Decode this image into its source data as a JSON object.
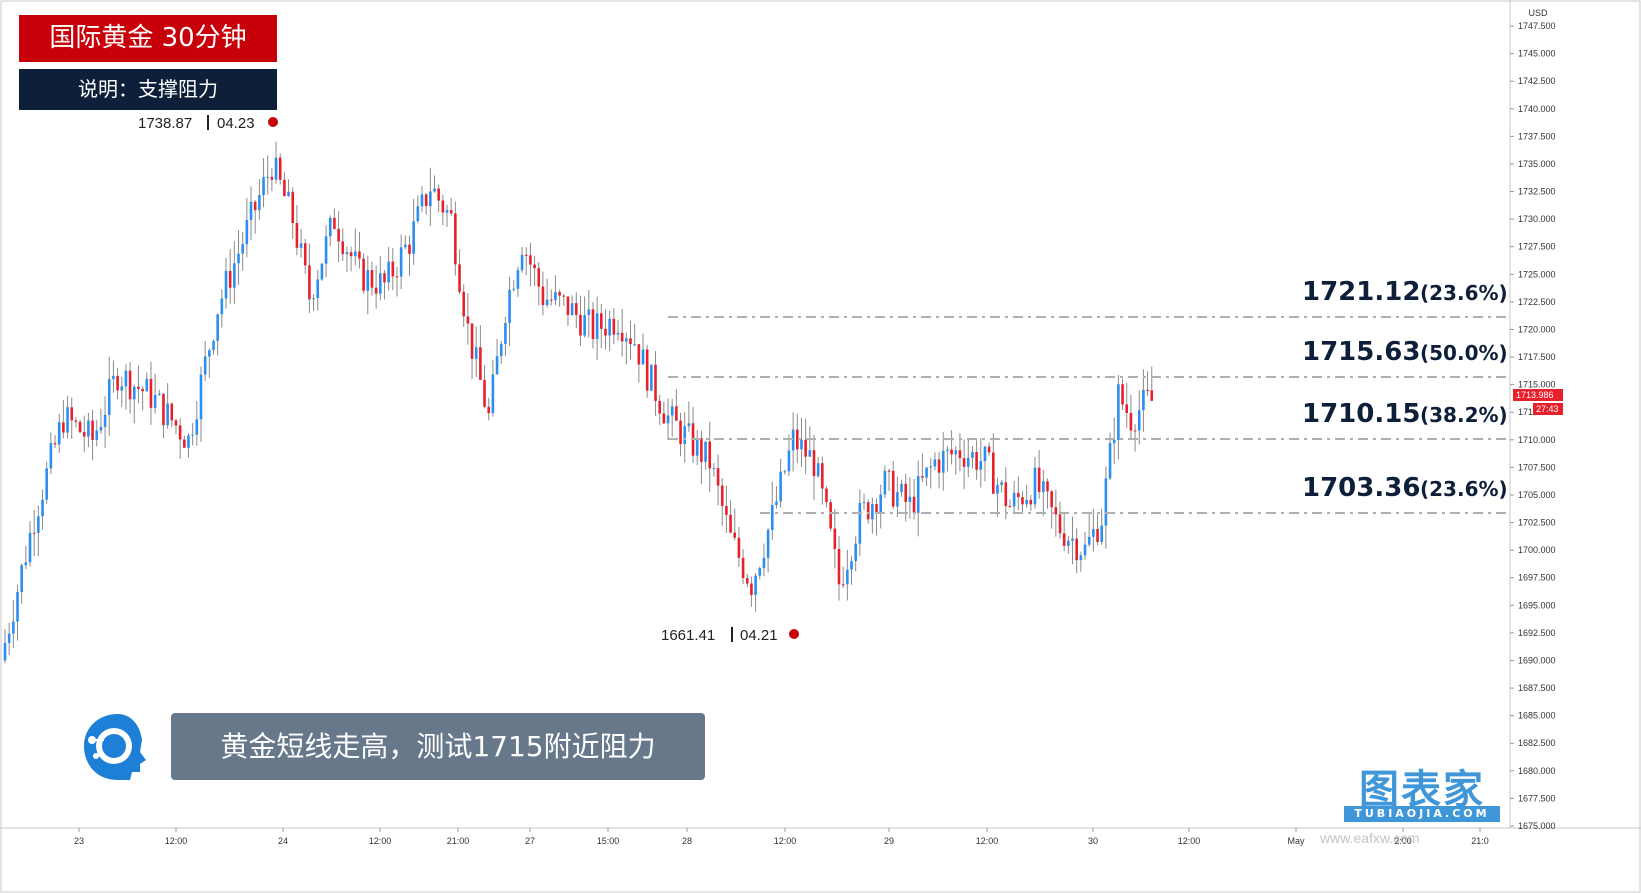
{
  "header": {
    "title": "国际黄金  30分钟",
    "subtitle": "说明：支撑阻力"
  },
  "callout": {
    "text": "黄金短线走高，测试1715附近阻力"
  },
  "watermark": {
    "brand": "图表家",
    "sub": "TUBIAOJIA.COM",
    "url": "www.eafxw.com"
  },
  "colors": {
    "up": "#2a8ff0",
    "down": "#e8202c",
    "title_bg": "#c8000a",
    "subtitle_bg": "#0e1f3a",
    "callout_bg": "#67788a",
    "level_line": "#b0b0b0",
    "level_text": "#0e1f3a"
  },
  "chart_data": {
    "type": "candlestick",
    "instrument": "国际黄金",
    "timeframe": "30分钟",
    "currency": "USD",
    "ylim": [
      1673.5,
      1749.5
    ],
    "y_ticks": [
      1747.5,
      1745.0,
      1742.5,
      1740.0,
      1737.5,
      1735.0,
      1732.5,
      1730.0,
      1727.5,
      1725.0,
      1722.5,
      1720.0,
      1717.5,
      1715.0,
      1712.5,
      1710.0,
      1707.5,
      1705.0,
      1702.5,
      1700.0,
      1697.5,
      1695.0,
      1692.5,
      1690.0,
      1687.5,
      1685.0,
      1682.5,
      1680.0,
      1677.5,
      1675.0
    ],
    "x_ticks": [
      "23",
      "12:00",
      "24",
      "12:00",
      "21:00",
      "27",
      "15:00",
      "28",
      "12:00",
      "29",
      "12:00",
      "30",
      "12:00",
      "May",
      "2:00",
      "21:0"
    ],
    "current_price": "1713.986",
    "countdown": "27:43",
    "levels": [
      {
        "value": "1721.12",
        "pct": "(23.6%)"
      },
      {
        "value": "1715.63",
        "pct": "(50.0%)"
      },
      {
        "value": "1710.15",
        "pct": "(38.2%)"
      },
      {
        "value": "1703.36",
        "pct": "(23.6%)"
      }
    ],
    "high_marker": {
      "price": "1738.87",
      "date": "04.23"
    },
    "low_marker": {
      "price": "1661.41",
      "date": "04.21"
    },
    "path_keypoints": [
      [
        0,
        1690
      ],
      [
        8,
        1703
      ],
      [
        15,
        1712
      ],
      [
        22,
        1710
      ],
      [
        28,
        1716
      ],
      [
        36,
        1714
      ],
      [
        45,
        1710
      ],
      [
        52,
        1722
      ],
      [
        58,
        1728
      ],
      [
        65,
        1735
      ],
      [
        70,
        1730
      ],
      [
        74,
        1723
      ],
      [
        80,
        1730
      ],
      [
        86,
        1725
      ],
      [
        92,
        1724
      ],
      [
        98,
        1728
      ],
      [
        103,
        1733
      ],
      [
        108,
        1730
      ],
      [
        112,
        1720
      ],
      [
        117,
        1712
      ],
      [
        121,
        1722
      ],
      [
        125,
        1728
      ],
      [
        130,
        1723
      ],
      [
        136,
        1722
      ],
      [
        142,
        1720
      ],
      [
        148,
        1721
      ],
      [
        152,
        1719
      ],
      [
        155,
        1716
      ],
      [
        160,
        1712
      ],
      [
        165,
        1710
      ],
      [
        170,
        1708
      ],
      [
        175,
        1701
      ],
      [
        180,
        1697
      ],
      [
        185,
        1703
      ],
      [
        190,
        1710
      ],
      [
        195,
        1708
      ],
      [
        198,
        1703
      ],
      [
        201,
        1697
      ],
      [
        206,
        1703
      ],
      [
        212,
        1706
      ],
      [
        218,
        1704
      ],
      [
        224,
        1708
      ],
      [
        230,
        1709
      ],
      [
        236,
        1708
      ],
      [
        242,
        1704
      ],
      [
        248,
        1706
      ],
      [
        254,
        1702
      ],
      [
        260,
        1700
      ],
      [
        264,
        1703
      ],
      [
        268,
        1714
      ],
      [
        271,
        1712
      ],
      [
        275,
        1713.5
      ]
    ]
  }
}
